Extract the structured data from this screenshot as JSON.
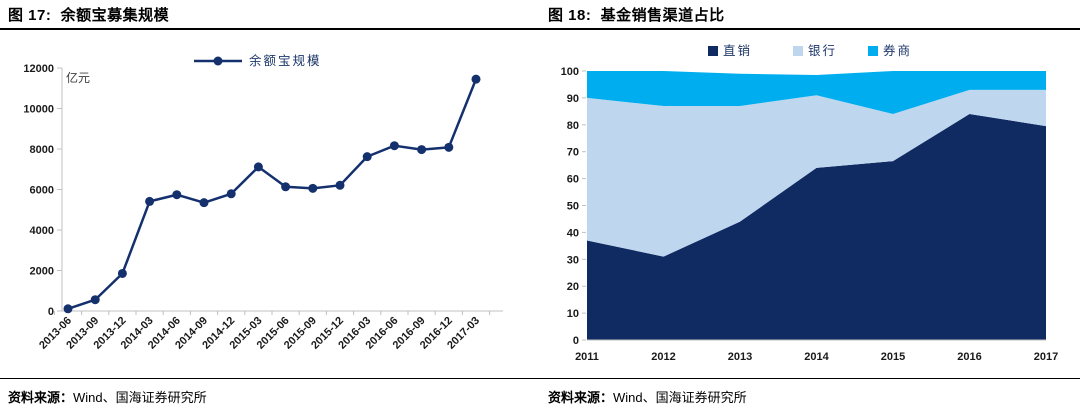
{
  "panels": [
    {
      "title": "图 17:  余额宝募集规模",
      "source_label": "资料来源：",
      "source_text": "Wind、国海证券研究所"
    },
    {
      "title": "图 18:  基金销售渠道占比",
      "source_label": "资料来源：",
      "source_text": "Wind、国海证券研究所"
    }
  ],
  "colors": {
    "line_navy": "#14316e",
    "area_navy": "#102a62",
    "area_lightblue": "#bed6ee",
    "area_cyan": "#00aeef",
    "axis_gray": "#c0c0c0",
    "tick_text": "#1a1a1a",
    "legend_text": "#1d3768"
  },
  "chart_data": [
    {
      "type": "line",
      "title": "余额宝募集规模",
      "unit_label": "亿元",
      "legend_position": "top",
      "grid": false,
      "categories": [
        "2013-06",
        "2013-09",
        "2013-12",
        "2014-03",
        "2014-06",
        "2014-09",
        "2014-12",
        "2015-03",
        "2015-06",
        "2015-09",
        "2015-12",
        "2016-03",
        "2016-06",
        "2016-09",
        "2016-12",
        "2017-03"
      ],
      "series": [
        {
          "name": "余额宝规模",
          "color": "#14316e",
          "values": [
            110,
            557,
            1853,
            5413,
            5742,
            5349,
            5789,
            7117,
            6134,
            6057,
            6207,
            7623,
            8163,
            7970,
            8083,
            11450
          ]
        }
      ],
      "ylim": [
        0,
        12000
      ],
      "ytick_step": 2000,
      "yticks": [
        0,
        2000,
        4000,
        6000,
        8000,
        10000,
        12000
      ]
    },
    {
      "type": "area",
      "stacked": true,
      "title": "基金销售渠道占比",
      "legend_position": "top",
      "grid": false,
      "categories": [
        "2011",
        "2012",
        "2013",
        "2014",
        "2015",
        "2016",
        "2017"
      ],
      "series": [
        {
          "name": "直销",
          "color": "#102a62",
          "values": [
            37,
            31,
            44,
            64,
            66.5,
            84,
            79.5
          ]
        },
        {
          "name": "银行",
          "color": "#bed6ee",
          "values": [
            53,
            56,
            43,
            27,
            17.5,
            9,
            13.5
          ]
        },
        {
          "name": "券商",
          "color": "#00aeef",
          "values": [
            10,
            13,
            12,
            7.5,
            16,
            7,
            7
          ]
        }
      ],
      "ylim": [
        0,
        100
      ],
      "ytick_step": 10,
      "yticks": [
        0,
        10,
        20,
        30,
        40,
        50,
        60,
        70,
        80,
        90,
        100
      ]
    }
  ]
}
